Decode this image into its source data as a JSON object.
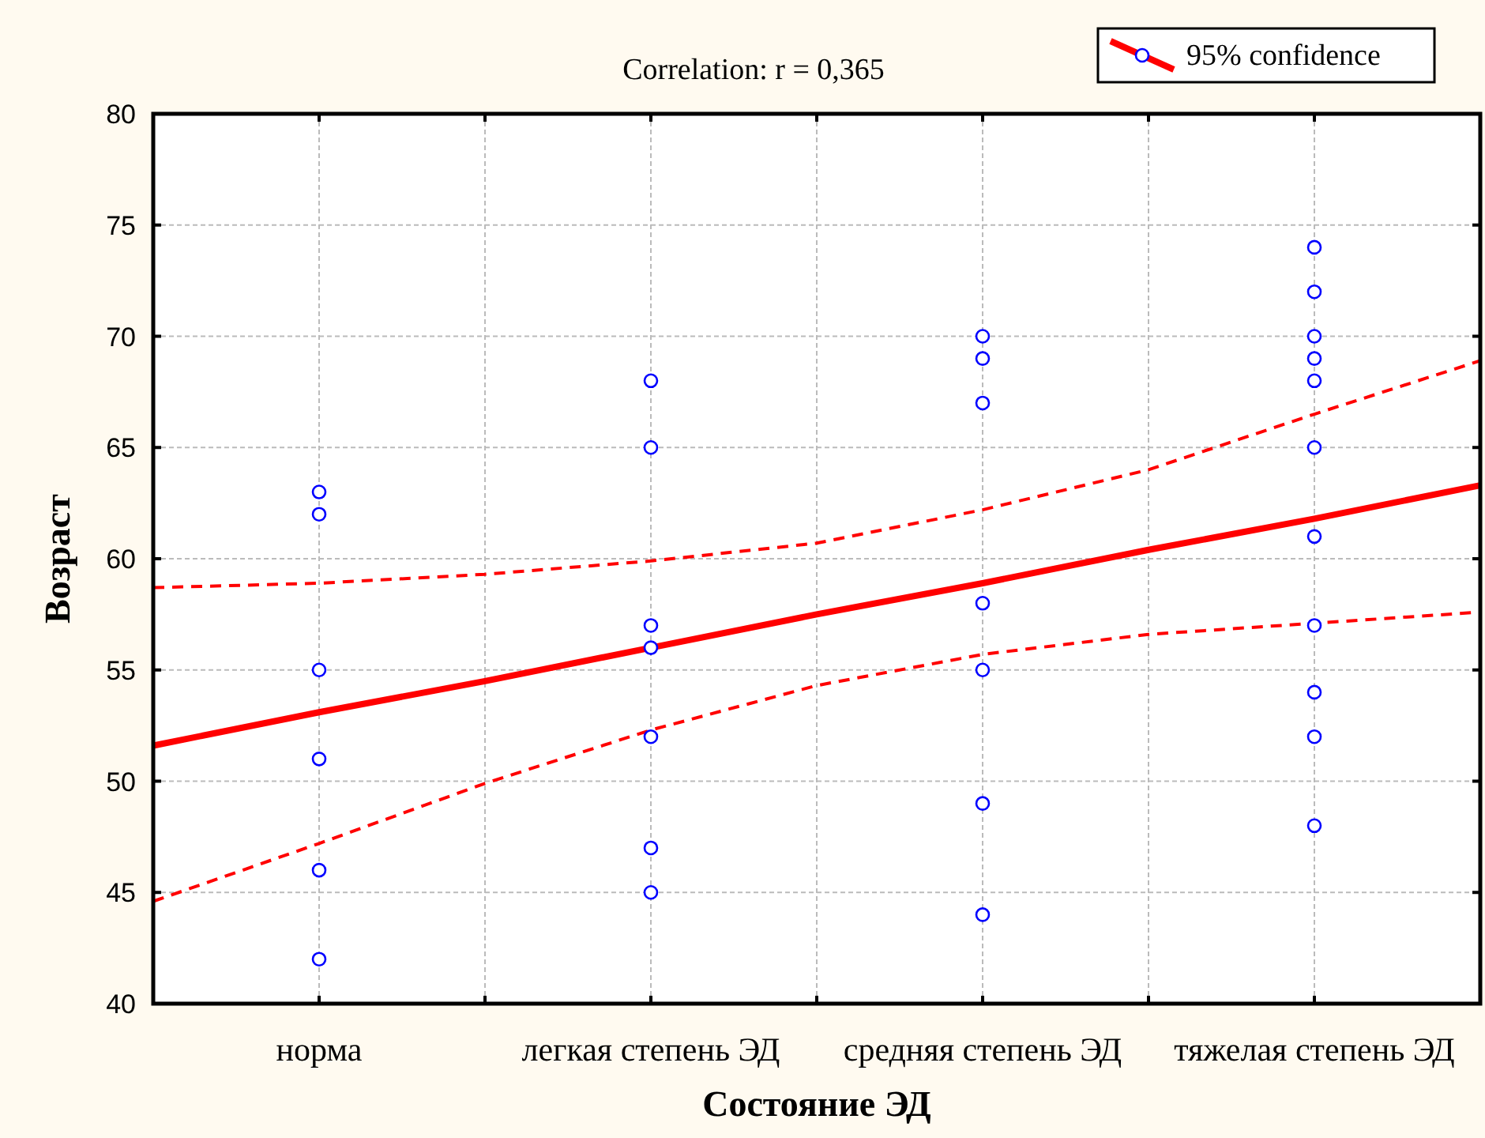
{
  "chart_data": {
    "type": "scatter",
    "title": "Correlation: r = 0,365",
    "xlabel": "Состояние ЭД",
    "ylabel": "Возраст",
    "categories": [
      null,
      "норма",
      null,
      "легкая степень ЭД",
      null,
      "средняя степень ЭД",
      null,
      "тяжелая степень ЭД",
      null
    ],
    "ylim": [
      40,
      80
    ],
    "yticks": [
      40,
      45,
      50,
      55,
      60,
      65,
      70,
      75,
      80
    ],
    "grid": true,
    "legend": "top right",
    "series": [
      {
        "type": "scatter",
        "color": "#0000ff",
        "marker": "circle",
        "x": [
          "норма",
          "норма",
          "норма",
          "норма",
          "норма",
          "норма",
          "легкая степень ЭД",
          "легкая степень ЭД",
          "легкая степень ЭД",
          "легкая степень ЭД",
          "легкая степень ЭД",
          "легкая степень ЭД",
          "легкая степень ЭД",
          "средняя степень ЭД",
          "средняя степень ЭД",
          "средняя степень ЭД",
          "средняя степень ЭД",
          "средняя степень ЭД",
          "средняя степень ЭД",
          "средняя степень ЭД",
          "тяжелая степень ЭД",
          "тяжелая степень ЭД",
          "тяжелая степень ЭД",
          "тяжелая степень ЭД",
          "тяжелая степень ЭД",
          "тяжелая степень ЭД",
          "тяжелая степень ЭД",
          "тяжелая степень ЭД",
          "тяжелая степень ЭД",
          "тяжелая степень ЭД",
          "тяжелая степень ЭД"
        ],
        "values": [
          63,
          62,
          55,
          51,
          46,
          42,
          68,
          65,
          57,
          56,
          52,
          47,
          45,
          70,
          69,
          67,
          58,
          55,
          49,
          44,
          74,
          72,
          70,
          69,
          68,
          65,
          61,
          57,
          54,
          52,
          48
        ]
      },
      {
        "type": "line",
        "name": "95% confidence",
        "color": "#ff0000",
        "line_style": "solid",
        "values": [
          51.6,
          53.1,
          54.5,
          56.0,
          57.5,
          58.9,
          60.4,
          61.8,
          63.3
        ]
      },
      {
        "type": "line",
        "color": "#ff0000",
        "line_style": "dashed",
        "values": [
          44.6,
          47.2,
          49.9,
          52.3,
          54.3,
          55.7,
          56.6,
          57.1,
          57.6
        ]
      },
      {
        "type": "line",
        "color": "#ff0000",
        "line_style": "dashed",
        "values": [
          58.7,
          58.9,
          59.3,
          59.9,
          60.7,
          62.2,
          64.0,
          66.5,
          68.9
        ]
      }
    ]
  }
}
